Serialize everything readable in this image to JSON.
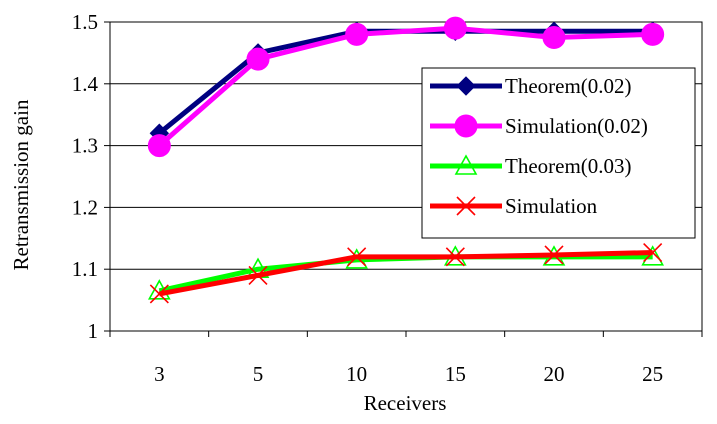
{
  "chart_data": {
    "type": "line",
    "categories": [
      "3",
      "5",
      "10",
      "15",
      "20",
      "25"
    ],
    "ylabel": "Retransmission gain",
    "xlabel": "Receivers",
    "ylim": [
      1,
      1.5
    ],
    "yticks": [
      "1",
      "1.1",
      "1.2",
      "1.3",
      "1.4",
      "1.5"
    ],
    "grid": "horizontal",
    "legend_position": "right",
    "series": [
      {
        "name": "Theorem(0.02)",
        "values": [
          1.32,
          1.45,
          1.485,
          1.485,
          1.485,
          1.485
        ],
        "color": "#000080",
        "marker": "diamond"
      },
      {
        "name": "Simulation(0.02)",
        "values": [
          1.3,
          1.44,
          1.48,
          1.49,
          1.475,
          1.48
        ],
        "color": "#ff00ff",
        "marker": "circle"
      },
      {
        "name": "Theorem(0.03)",
        "values": [
          1.065,
          1.1,
          1.115,
          1.12,
          1.12,
          1.12
        ],
        "color": "#00ff00",
        "marker": "triangle"
      },
      {
        "name": "Simulation",
        "values": [
          1.06,
          1.09,
          1.12,
          1.12,
          1.123,
          1.127
        ],
        "color": "#ff0000",
        "marker": "x"
      }
    ]
  }
}
